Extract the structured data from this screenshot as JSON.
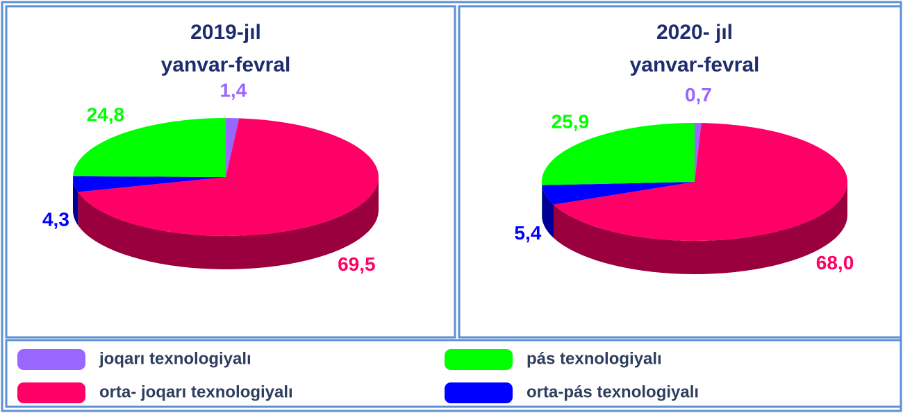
{
  "chart_data": [
    {
      "type": "pie",
      "title": "2019-jıl",
      "subtitle": "yanvar-fevral",
      "values": [
        1.4,
        69.5,
        4.3,
        24.8
      ],
      "value_labels": [
        "1,4",
        "69,5",
        "4,3",
        "24,8"
      ],
      "colors": [
        "#9966ff",
        "#ff0066",
        "#0000ff",
        "#00ff00"
      ]
    },
    {
      "type": "pie",
      "title": "2020- jıl",
      "subtitle": "yanvar-fevral",
      "values": [
        0.7,
        68.0,
        5.4,
        25.9
      ],
      "value_labels": [
        "0,7",
        "68,0",
        "5,4",
        "25,9"
      ],
      "colors": [
        "#9966ff",
        "#ff0066",
        "#0000ff",
        "#00ff00"
      ]
    }
  ],
  "legend": {
    "labels": [
      "joqarı texnologiyalı",
      "orta- joqarı texnologiyalı",
      "orta-pás texnologiyalı",
      "pás texnologiyalı"
    ],
    "colors": [
      "#9966ff",
      "#ff0066",
      "#0000ff",
      "#00ff00"
    ]
  }
}
